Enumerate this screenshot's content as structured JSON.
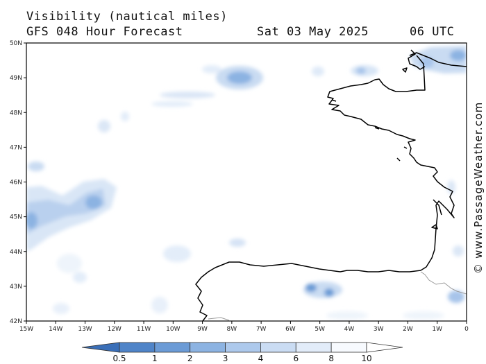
{
  "title": {
    "line1": "Visibility (nautical miles)",
    "line2": "GFS 048 Hour Forecast",
    "date": "Sat 03 May 2025",
    "time": "06 UTC"
  },
  "credit": "© www.PassageWeather.com",
  "axes": {
    "lat_labels": [
      "50N",
      "49N",
      "48N",
      "47N",
      "46N",
      "45N",
      "44N",
      "43N",
      "42N"
    ],
    "lon_labels": [
      "15W",
      "14W",
      "13W",
      "12W",
      "11W",
      "10W",
      "9W",
      "8W",
      "7W",
      "6W",
      "5W",
      "4W",
      "3W",
      "2W",
      "1W",
      "0"
    ]
  },
  "colorbar": {
    "labels": [
      "0.5",
      "1",
      "2",
      "3",
      "4",
      "6",
      "8",
      "10"
    ],
    "colors": [
      "#3a6fb8",
      "#4f84c8",
      "#6b9bd6",
      "#8cb3e2",
      "#adc9ec",
      "#cadcf3",
      "#e2ecf9",
      "#f7fafe"
    ]
  }
}
